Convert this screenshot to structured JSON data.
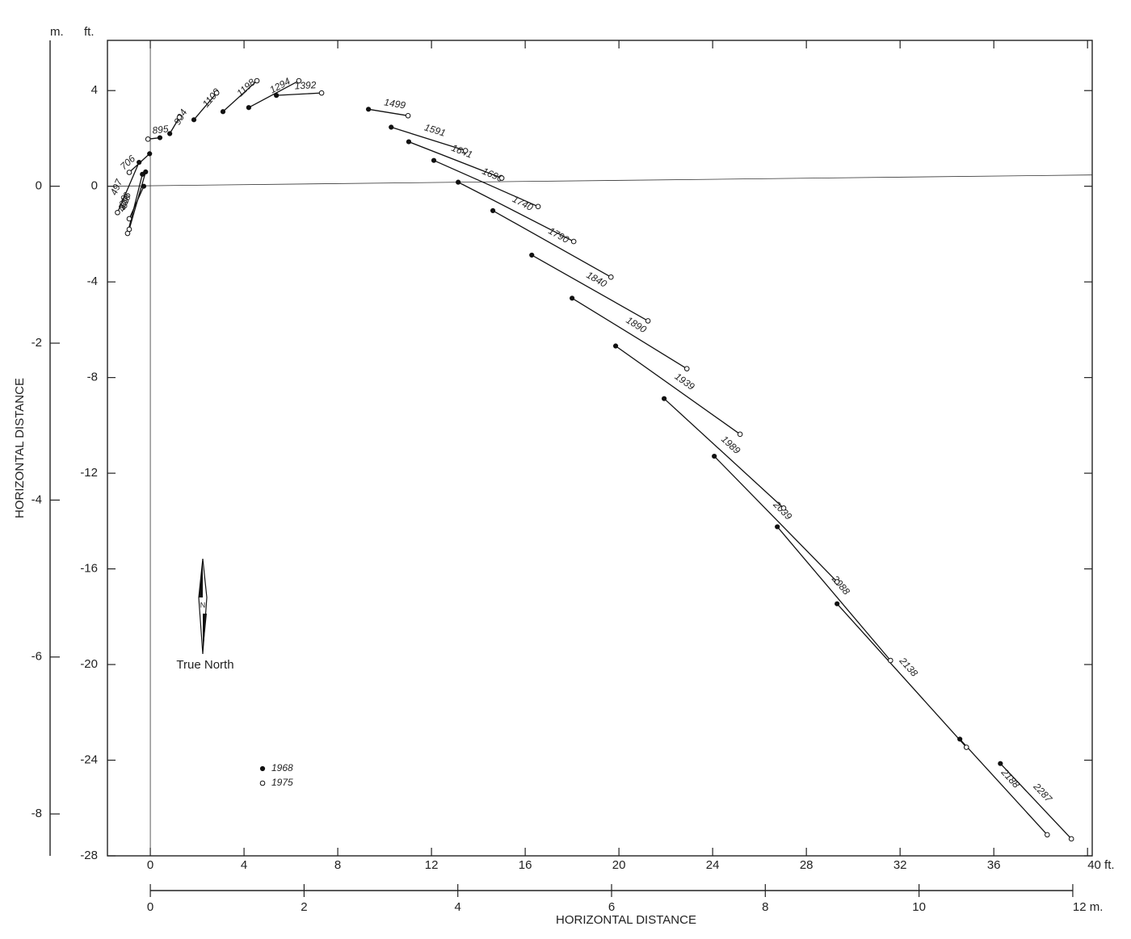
{
  "chart_data": {
    "type": "scatter",
    "x_label": "HORIZONTAL DISTANCE",
    "y_label": "HORIZONTAL DISTANCE",
    "y2_unit": "m.",
    "y_unit": "ft.",
    "north_label": "True North",
    "north_letter": "N",
    "xlim": [
      -1.83,
      40.2
    ],
    "xticks": [
      0,
      4,
      8,
      12,
      16,
      20,
      24,
      28,
      32,
      36,
      {
        "value": 40,
        "label": "40 ft."
      }
    ],
    "x2lim": [
      -0.558,
      12.253
    ],
    "x2ticks": [
      0,
      2,
      4,
      6,
      8,
      10,
      {
        "value": 12,
        "label": "12 m."
      }
    ],
    "ylim": [
      -28,
      6.1
    ],
    "yticks": [
      4,
      0,
      -4,
      -8,
      -12,
      -16,
      -20,
      -24,
      -28
    ],
    "y2lim": [
      -8.534,
      1.859
    ],
    "y2ticks": [
      0,
      -2,
      -4,
      -6,
      -8
    ],
    "depths": [
      "300",
      "400",
      "497",
      "606",
      "706",
      "895",
      "994",
      "1100",
      "1198",
      "1294",
      "1392",
      "1499",
      "1591",
      "1641",
      "1690",
      "1740",
      "1790",
      "1840",
      "1890",
      "1939",
      "1989",
      "2039",
      "2088",
      "2138",
      "2188",
      "2287"
    ],
    "series": [
      {
        "name": "1968",
        "color": "#111",
        "x": [
          -0.28,
          -0.34,
          -0.48,
          -0.2,
          -0.03,
          0.41,
          0.83,
          1.86,
          3.1,
          4.2,
          5.38,
          9.31,
          10.28,
          11.03,
          12.1,
          13.14,
          14.62,
          16.28,
          18.0,
          19.86,
          21.93,
          24.07,
          26.76,
          29.31,
          34.55,
          36.28
        ],
        "values": [
          0.0,
          0.5,
          1.0,
          0.6,
          1.36,
          2.03,
          2.2,
          2.78,
          3.12,
          3.29,
          3.8,
          3.22,
          2.47,
          1.86,
          1.08,
          0.17,
          -1.02,
          -2.88,
          -4.68,
          -6.68,
          -8.88,
          -11.29,
          -14.24,
          -17.46,
          -23.12,
          -24.14
        ]
      },
      {
        "name": "1975",
        "color": "#111",
        "x": [
          -0.9,
          -0.97,
          -1.4,
          -0.9,
          -0.9,
          -0.1,
          1.24,
          2.83,
          4.55,
          6.34,
          7.31,
          11.0,
          13.45,
          15.0,
          16.55,
          18.07,
          19.66,
          21.24,
          22.9,
          25.17,
          27.03,
          29.31,
          31.59,
          34.83,
          38.28,
          39.31
        ],
        "values": [
          -1.36,
          -1.97,
          -1.1,
          -1.8,
          0.58,
          1.97,
          2.88,
          3.9,
          4.41,
          4.41,
          3.9,
          2.95,
          1.49,
          0.34,
          -0.85,
          -2.31,
          -3.8,
          -5.63,
          -7.63,
          -10.37,
          -13.46,
          -16.54,
          -19.83,
          -23.46,
          -27.12,
          -27.29
        ]
      }
    ]
  }
}
